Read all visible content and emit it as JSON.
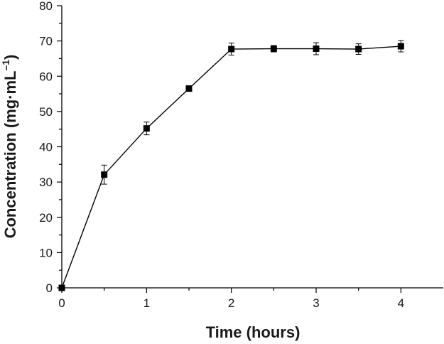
{
  "chart_data": {
    "type": "line",
    "title": "",
    "xlabel": "Time (hours)",
    "ylabel_main": "Concentration (mg·mL",
    "ylabel_sup": "–1",
    "ylabel_close": ")",
    "xlim": [
      0,
      4.5
    ],
    "ylim": [
      0,
      80
    ],
    "x_ticks": [
      0,
      1,
      2,
      3,
      4
    ],
    "x_tick_labels": [
      "0",
      "1",
      "2",
      "3",
      "4"
    ],
    "y_ticks": [
      0,
      10,
      20,
      30,
      40,
      50,
      60,
      70,
      80
    ],
    "y_tick_labels": [
      "0",
      "10",
      "20",
      "30",
      "40",
      "50",
      "60",
      "70",
      "80"
    ],
    "grid": false,
    "legend": "none",
    "colors": {
      "line": "#000000",
      "marker": "#000000"
    },
    "series": [
      {
        "marker": "square",
        "x": [
          0,
          0.5,
          1,
          1.5,
          2,
          2.5,
          3,
          3.5,
          4
        ],
        "y": [
          0,
          32.1,
          45.2,
          56.5,
          67.7,
          67.8,
          67.8,
          67.7,
          68.5
        ],
        "error": [
          0,
          2.7,
          1.8,
          0.8,
          1.7,
          0.9,
          1.7,
          1.5,
          1.6
        ]
      }
    ]
  }
}
